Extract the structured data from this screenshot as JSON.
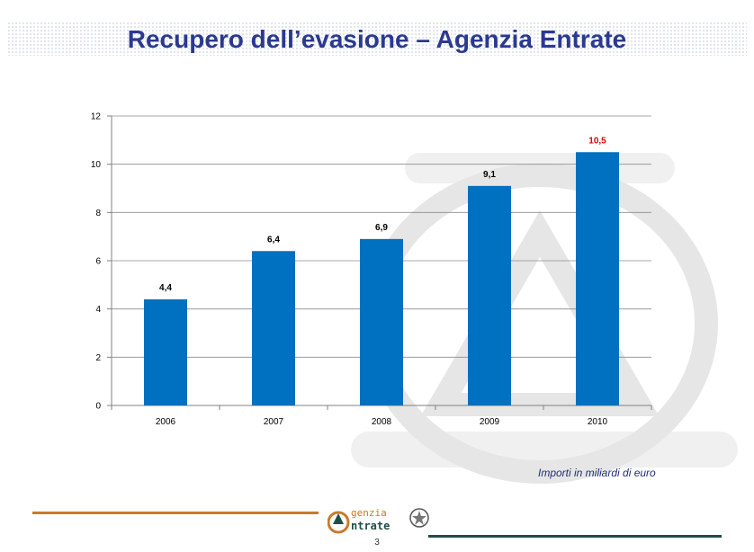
{
  "slide": {
    "title": "Recupero dell’evasione – Agenzia Entrate",
    "note": "Importi in miliardi di euro",
    "page_number": "3",
    "logo_text": "Agenzia Entrate"
  },
  "colors": {
    "title": "#2b3990",
    "bar": "#0070c0",
    "highlight_label": "#e00000",
    "rule_left": "#c97a2c",
    "rule_right": "#1f4e46"
  },
  "chart_data": {
    "type": "bar",
    "categories": [
      "2006",
      "2007",
      "2008",
      "2009",
      "2010"
    ],
    "values": [
      4.4,
      6.4,
      6.9,
      9.1,
      10.5
    ],
    "data_labels": [
      "4,4",
      "6,4",
      "6,9",
      "9,1",
      "10,5"
    ],
    "highlight_label_index": 4,
    "y_ticks": [
      0,
      2,
      4,
      6,
      8,
      10,
      12
    ],
    "ylim": [
      0,
      12
    ],
    "grid": true,
    "legend": "none"
  }
}
